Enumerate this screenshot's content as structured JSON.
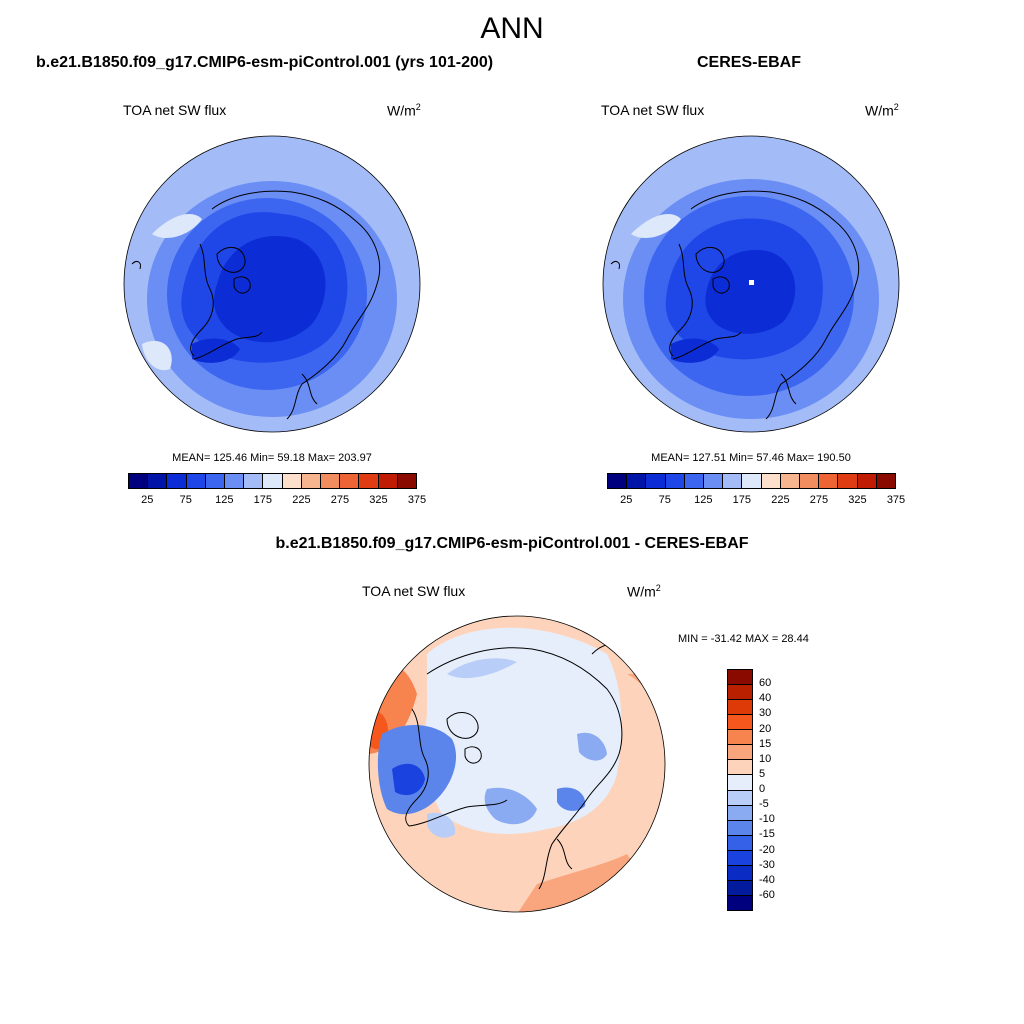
{
  "page": {
    "season": "ANN"
  },
  "panels": [
    {
      "id": "model",
      "case_title": "b.e21.B1850.f09_g17.CMIP6-esm-piControl.001 (yrs 101-200)",
      "variable": "TOA net SW flux",
      "units": "W/m",
      "units_sup": "2",
      "stats": "MEAN= 125.46  Min=  59.18  Max= 203.97"
    },
    {
      "id": "obs",
      "case_title": "CERES-EBAF",
      "variable": "TOA net SW flux",
      "units": "W/m",
      "units_sup": "2",
      "stats": "MEAN= 127.51  Min=  57.46  Max= 190.50"
    },
    {
      "id": "diff",
      "case_title": "b.e21.B1850.f09_g17.CMIP6-esm-piControl.001 - CERES-EBAF",
      "variable": "TOA net SW flux",
      "units": "W/m",
      "units_sup": "2",
      "stats": "MIN = -31.42 MAX =  28.44"
    }
  ],
  "colorbars": {
    "absolute": {
      "colors": [
        "#00007f",
        "#0015a8",
        "#0c2dd6",
        "#1f47e8",
        "#3c66f0",
        "#6b8ef5",
        "#a3bcf7",
        "#dde8fb",
        "#fde0cc",
        "#f6b58f",
        "#f28d60",
        "#ee6435",
        "#e03c14",
        "#c01c03",
        "#8a0a00"
      ],
      "tick_labels": [
        "25",
        "75",
        "125",
        "175",
        "225",
        "275",
        "325",
        "375"
      ]
    },
    "difference": {
      "colors": [
        "#8a0a00",
        "#b82000",
        "#de3a08",
        "#f6571c",
        "#f7834f",
        "#f9a57d",
        "#fdd4bb",
        "#e6eefc",
        "#b8cdf7",
        "#8aabf2",
        "#5c85ec",
        "#3461e8",
        "#1a42de",
        "#0a2cc4",
        "#021a9c",
        "#00007f"
      ],
      "tick_labels": [
        "60",
        "40",
        "30",
        "20",
        "15",
        "10",
        "5",
        "0",
        "-5",
        "-10",
        "-15",
        "-20",
        "-30",
        "-40",
        "-60"
      ]
    }
  },
  "chart_data": [
    {
      "type": "heatmap",
      "title": "TOA net SW flux",
      "subtitle": "b.e21.B1850.f09_g17.CMIP6-esm-piControl.001 (yrs 101-200)",
      "projection": "north polar stereographic",
      "units": "W/m2",
      "mean": 125.46,
      "min": 59.18,
      "max": 203.97,
      "levels": [
        25,
        50,
        75,
        100,
        125,
        150,
        175,
        200,
        225,
        250,
        275,
        300,
        325,
        350,
        375
      ]
    },
    {
      "type": "heatmap",
      "title": "TOA net SW flux",
      "subtitle": "CERES-EBAF",
      "projection": "north polar stereographic",
      "units": "W/m2",
      "mean": 127.51,
      "min": 57.46,
      "max": 190.5,
      "levels": [
        25,
        50,
        75,
        100,
        125,
        150,
        175,
        200,
        225,
        250,
        275,
        300,
        325,
        350,
        375
      ]
    },
    {
      "type": "heatmap",
      "title": "TOA net SW flux",
      "subtitle": "b.e21.B1850.f09_g17.CMIP6-esm-piControl.001 - CERES-EBAF",
      "projection": "north polar stereographic",
      "units": "W/m2",
      "min": -31.42,
      "max": 28.44,
      "levels": [
        -60,
        -40,
        -30,
        -20,
        -15,
        -10,
        -5,
        0,
        5,
        10,
        15,
        20,
        30,
        40,
        60
      ]
    }
  ]
}
